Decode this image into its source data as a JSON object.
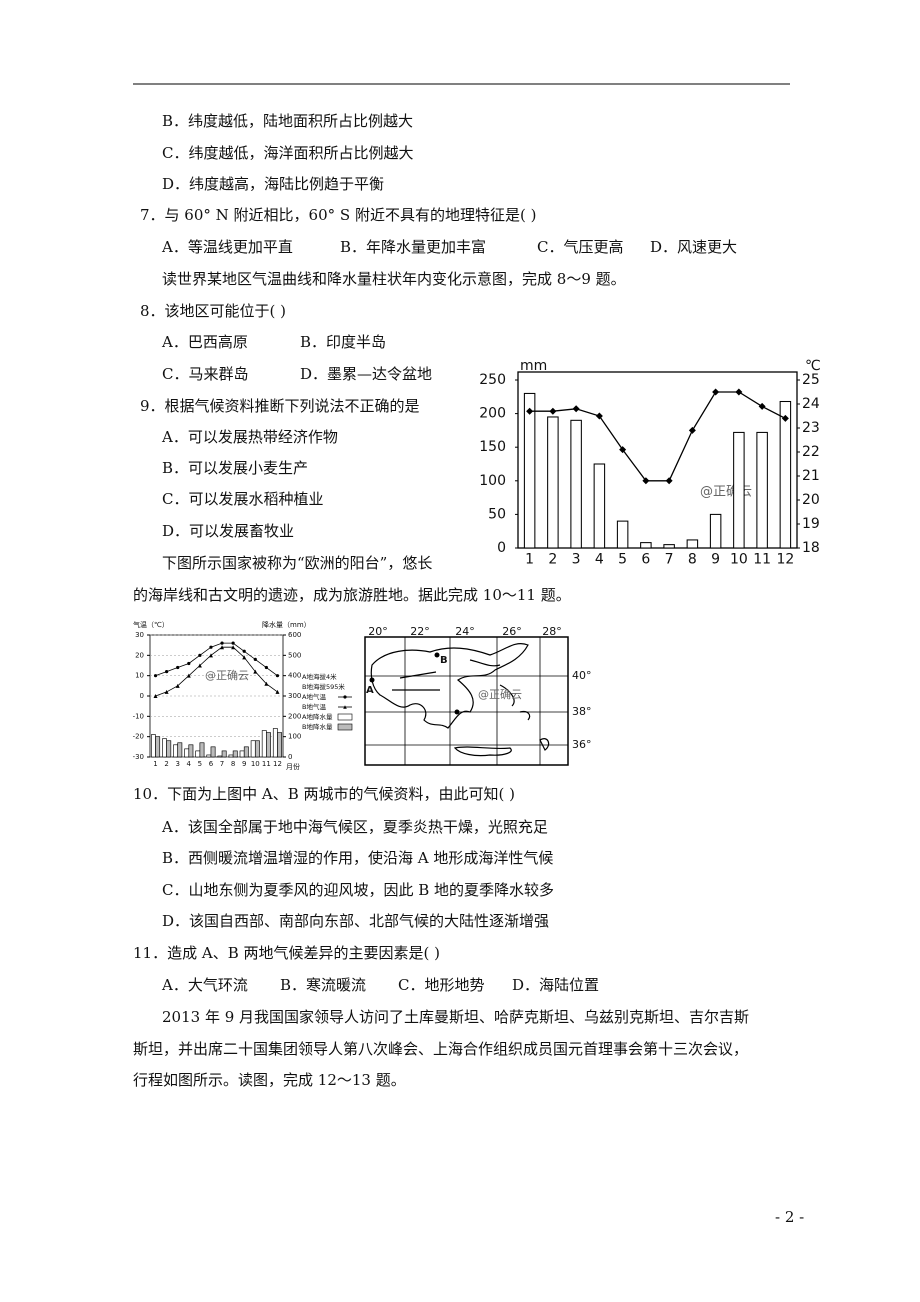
{
  "lines": [
    "B．纬度越低，陆地面积所占比例越大",
    "C．纬度越低，海洋面积所占比例越大",
    "D．纬度越高，海陆比例趋于平衡",
    "7．与 60° N 附近相比，60° S 附近不具有的地理特征是(      )",
    [
      "A．等温线更加平直",
      "B．年降水量更加丰富",
      "C．气压更高",
      "D．风速更大"
    ],
    "读世界某地区气温曲线和降水量柱状年内变化示意图，完成 8～9 题。",
    "8．该地区可能位于(      )",
    [
      "A．巴西高原",
      "B．印度半岛"
    ],
    [
      "C．马来群岛",
      "D．墨累—达令盆地"
    ],
    "9．根据气候资料推断下列说法不正确的是",
    "A．可以发展热带经济作物",
    "B．可以发展小麦生产",
    "C．可以发展水稻种植业",
    "D．可以发展畜牧业",
    "下图所示国家被称为“欧洲的阳台”，悠长",
    "的海岸线和古文明的遗迹，成为旅游胜地。据此完成 10～11 题。",
    "10．下面为上图中 A、B 两城市的气候资料，由此可知(      )",
    "A．该国全部属于地中海气候区，夏季炎热干燥，光照充足",
    "B．西侧暖流增温增湿的作用，使沿海 A 地形成海洋性气候",
    "C．山地东侧为夏季风的迎风坡，因此 B 地的夏季降水较多",
    "D．该国自西部、南部向东部、北部气候的大陆性逐渐增强",
    "11．造成 A、B 两地气候差异的主要因素是(      )",
    [
      "A．大气环流",
      "B．寒流暖流",
      "C．地形地势",
      "D．海陆位置"
    ],
    "2013 年 9 月我国国家领导人访问了土库曼斯坦、哈萨克斯坦、乌兹别克斯坦、吉尔吉斯",
    "斯坦，并出席二十国集团领导人第八次峰会、上海合作组织成员国元首理事会第十三次会议，",
    "行程如图所示。读图，完成 12～13 题。"
  ],
  "page_number": "- 2 -",
  "map": {
    "longitudes": [
      "20°",
      "22°",
      "24°",
      "26°",
      "28°"
    ],
    "latitudes": [
      "40°",
      "38°",
      "36°"
    ],
    "labels": [
      "A",
      "B"
    ],
    "watermark": "@正确云"
  },
  "chart_data": [
    {
      "type": "bar-line",
      "y_label": "mm",
      "y2_label": "℃",
      "watermark": "@正确云",
      "categories": [
        "1",
        "2",
        "3",
        "4",
        "5",
        "6",
        "7",
        "8",
        "9",
        "10",
        "11",
        "12"
      ],
      "ylim": [
        0,
        250
      ],
      "yticks": [
        0,
        50,
        100,
        150,
        200,
        250
      ],
      "y2lim": [
        18,
        25
      ],
      "y2ticks": [
        18,
        19,
        20,
        21,
        22,
        23,
        24,
        25
      ],
      "series": [
        {
          "type": "bar",
          "color": "#ffffff",
          "values": [
            230,
            195,
            190,
            125,
            40,
            8,
            5,
            12,
            50,
            172,
            172,
            218
          ]
        },
        {
          "type": "line",
          "axis": "y2",
          "color": "#000000",
          "values": [
            23.7,
            23.7,
            23.8,
            23.5,
            22.1,
            20.8,
            20.8,
            22.9,
            24.5,
            24.5,
            23.9,
            23.4
          ]
        }
      ]
    },
    {
      "type": "bar-line",
      "y_label": "气温（℃）",
      "y2_label": "降水量（mm）",
      "x_label": "月份",
      "watermark": "@正确云",
      "legend_notes": [
        "A地海拔4米",
        "B地海拔595米"
      ],
      "categories": [
        "1",
        "2",
        "3",
        "4",
        "5",
        "6",
        "7",
        "8",
        "9",
        "10",
        "11",
        "12"
      ],
      "ylim": [
        -30,
        30
      ],
      "yticks": [
        -30,
        -20,
        -10,
        0,
        10,
        20,
        30
      ],
      "y2lim": [
        0,
        600
      ],
      "y2ticks": [
        0,
        100,
        200,
        300,
        400,
        500,
        600
      ],
      "series": [
        {
          "name": "A地气温",
          "type": "line",
          "marker": "circle",
          "color": "#000000",
          "values": [
            10,
            12,
            14,
            16,
            20,
            24,
            26,
            26,
            22,
            18,
            14,
            10
          ]
        },
        {
          "name": "B地气温",
          "type": "line",
          "marker": "triangle",
          "color": "#000000",
          "values": [
            0,
            2,
            5,
            10,
            15,
            20,
            24,
            24,
            19,
            12,
            6,
            2
          ]
        },
        {
          "name": "A地降水量",
          "type": "bar",
          "axis": "y2",
          "color": "#ffffff",
          "values": [
            110,
            90,
            60,
            40,
            30,
            10,
            5,
            10,
            30,
            80,
            130,
            140
          ]
        },
        {
          "name": "B地降水量",
          "type": "bar",
          "axis": "y2",
          "color": "#bbbbbb",
          "values": [
            100,
            80,
            70,
            60,
            70,
            50,
            30,
            30,
            50,
            80,
            120,
            120
          ]
        }
      ]
    }
  ]
}
